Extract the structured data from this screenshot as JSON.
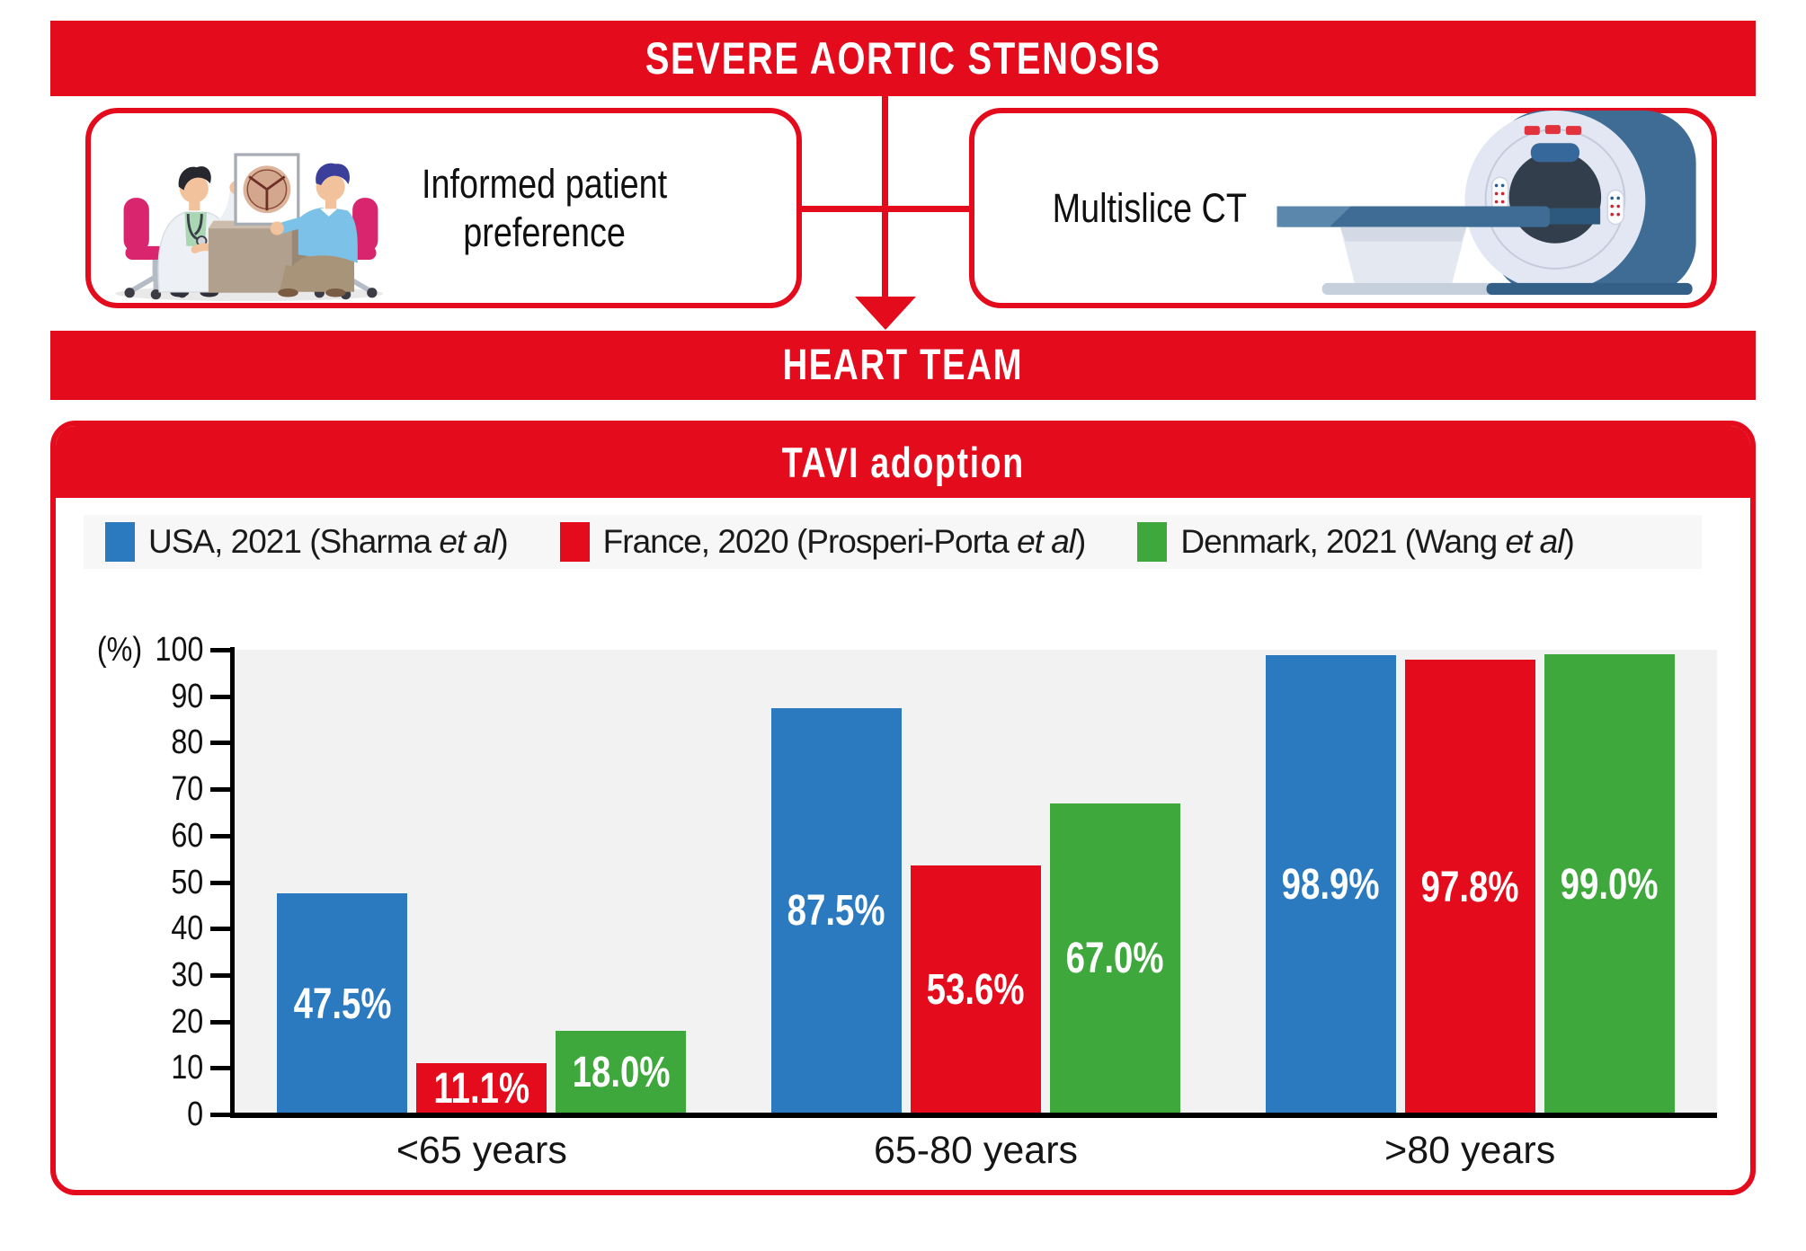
{
  "palette": {
    "red": "#e30b1c",
    "blue": "#2b7abf",
    "green": "#3ea83c",
    "plot_bg": "#f2f2f2",
    "legend_bg": "#f7f7f7",
    "axis": "#000000",
    "chair_magenta": "#d8256e",
    "scanner_blue": "#3e6c95",
    "scanner_face": "#e2e7f3"
  },
  "banners": {
    "top": "SEVERE AORTIC STENOSIS",
    "heart": "HEART TEAM"
  },
  "boxes": {
    "left": {
      "line1": "Informed patient",
      "line2": "preference"
    },
    "right": {
      "label": "Multislice CT"
    }
  },
  "panel": {
    "header": "TAVI adoption"
  },
  "legend": {
    "items": [
      {
        "prefix": "USA, 2021 (Sharma ",
        "italic": "et al",
        "suffix": ")"
      },
      {
        "prefix": "France, 2020 (Prosperi-Porta ",
        "italic": "et al",
        "suffix": ")"
      },
      {
        "prefix": "Denmark, 2021 (Wang ",
        "italic": "et al",
        "suffix": ")"
      }
    ]
  },
  "chart_data": {
    "type": "bar",
    "title": "TAVI adoption",
    "unit": "(%)",
    "categories": [
      "<65 years",
      "65-80 years",
      ">80 years"
    ],
    "series": [
      {
        "name": "USA, 2021 (Sharma et al)",
        "color": "#2b7abf",
        "values": [
          47.5,
          87.5,
          98.9
        ]
      },
      {
        "name": "France, 2020 (Prosperi-Porta et al)",
        "color": "#e30b1c",
        "values": [
          11.1,
          53.6,
          97.8
        ]
      },
      {
        "name": "Denmark, 2021 (Wang et al)",
        "color": "#3ea83c",
        "values": [
          18.0,
          67.0,
          99.0
        ]
      }
    ],
    "value_labels": [
      [
        "47.5%",
        "87.5%",
        "98.9%"
      ],
      [
        "11.1%",
        "53.6%",
        "97.8%"
      ],
      [
        "18.0%",
        "67.0%",
        "99.0%"
      ]
    ],
    "ylim": [
      0,
      100
    ],
    "yticks": [
      0,
      10,
      20,
      30,
      40,
      50,
      60,
      70,
      80,
      90,
      100
    ],
    "grid": false,
    "legend_position": "top"
  }
}
